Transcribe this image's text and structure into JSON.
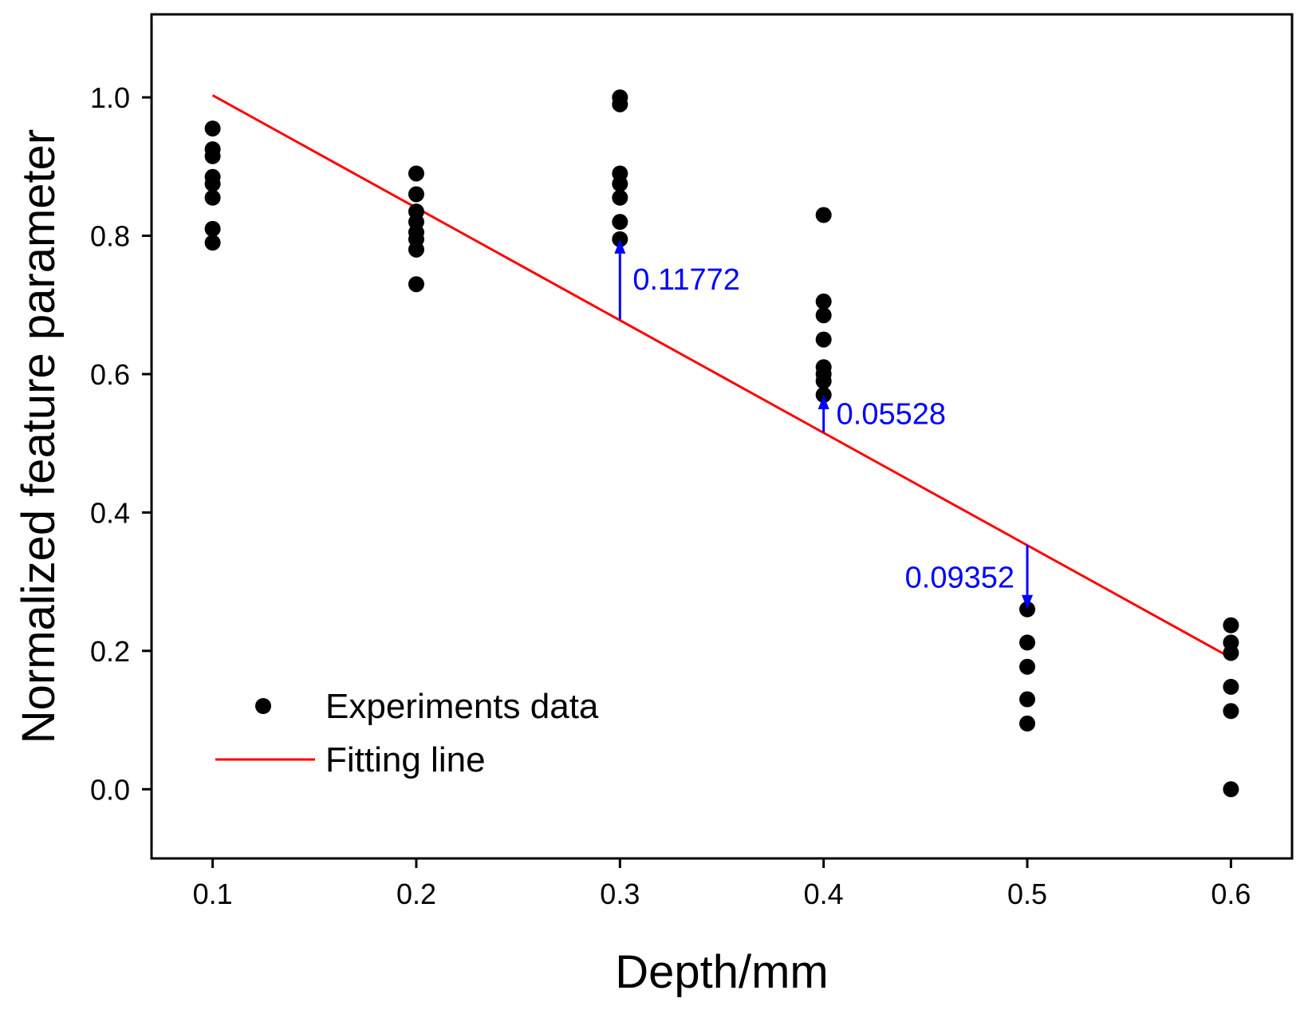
{
  "chart_data": {
    "type": "scatter",
    "title": "",
    "xlabel": "Depth/mm",
    "ylabel": "Normalized feature parameter",
    "xlim": [
      0.07,
      0.63
    ],
    "ylim": [
      -0.1,
      1.12
    ],
    "x_ticks": [
      0.1,
      0.2,
      0.3,
      0.4,
      0.5,
      0.6
    ],
    "x_tick_labels": [
      "0.1",
      "0.2",
      "0.3",
      "0.4",
      "0.5",
      "0.6"
    ],
    "y_ticks": [
      0.0,
      0.2,
      0.4,
      0.6,
      0.8,
      1.0
    ],
    "y_tick_labels": [
      "0.0",
      "0.2",
      "0.4",
      "0.6",
      "0.8",
      "1.0"
    ],
    "grid": false,
    "legend_position": "bottom-left",
    "colors": {
      "points": "#000000",
      "fit_line": "#ff0000",
      "annotation": "#0000ff"
    },
    "series": [
      {
        "name": "Experiments data",
        "type": "scatter",
        "points": [
          {
            "x": 0.1,
            "y": 0.955
          },
          {
            "x": 0.1,
            "y": 0.925
          },
          {
            "x": 0.1,
            "y": 0.915
          },
          {
            "x": 0.1,
            "y": 0.885
          },
          {
            "x": 0.1,
            "y": 0.875
          },
          {
            "x": 0.1,
            "y": 0.855
          },
          {
            "x": 0.1,
            "y": 0.81
          },
          {
            "x": 0.1,
            "y": 0.79
          },
          {
            "x": 0.2,
            "y": 0.89
          },
          {
            "x": 0.2,
            "y": 0.86
          },
          {
            "x": 0.2,
            "y": 0.835
          },
          {
            "x": 0.2,
            "y": 0.82
          },
          {
            "x": 0.2,
            "y": 0.805
          },
          {
            "x": 0.2,
            "y": 0.795
          },
          {
            "x": 0.2,
            "y": 0.78
          },
          {
            "x": 0.2,
            "y": 0.73
          },
          {
            "x": 0.3,
            "y": 1.0
          },
          {
            "x": 0.3,
            "y": 0.99
          },
          {
            "x": 0.3,
            "y": 0.89
          },
          {
            "x": 0.3,
            "y": 0.875
          },
          {
            "x": 0.3,
            "y": 0.855
          },
          {
            "x": 0.3,
            "y": 0.82
          },
          {
            "x": 0.3,
            "y": 0.795
          },
          {
            "x": 0.4,
            "y": 0.83
          },
          {
            "x": 0.4,
            "y": 0.705
          },
          {
            "x": 0.4,
            "y": 0.685
          },
          {
            "x": 0.4,
            "y": 0.65
          },
          {
            "x": 0.4,
            "y": 0.61
          },
          {
            "x": 0.4,
            "y": 0.6
          },
          {
            "x": 0.4,
            "y": 0.59
          },
          {
            "x": 0.4,
            "y": 0.57
          },
          {
            "x": 0.5,
            "y": 0.26
          },
          {
            "x": 0.5,
            "y": 0.212
          },
          {
            "x": 0.5,
            "y": 0.177
          },
          {
            "x": 0.5,
            "y": 0.13
          },
          {
            "x": 0.5,
            "y": 0.095
          },
          {
            "x": 0.6,
            "y": 0.237
          },
          {
            "x": 0.6,
            "y": 0.212
          },
          {
            "x": 0.6,
            "y": 0.197
          },
          {
            "x": 0.6,
            "y": 0.148
          },
          {
            "x": 0.6,
            "y": 0.113
          },
          {
            "x": 0.6,
            "y": 0.0
          }
        ]
      },
      {
        "name": "Fitting line",
        "type": "line",
        "x": [
          0.1,
          0.6
        ],
        "y": [
          1.003,
          0.19
        ]
      }
    ],
    "annotations": [
      {
        "text": "0.11772",
        "x": 0.3,
        "y_from": 0.679,
        "y_to": 0.795,
        "direction": "up",
        "label_side": "right"
      },
      {
        "text": "0.05528",
        "x": 0.4,
        "y_from": 0.516,
        "y_to": 0.57,
        "direction": "up",
        "label_side": "right"
      },
      {
        "text": "0.09352",
        "x": 0.5,
        "y_from": 0.353,
        "y_to": 0.26,
        "direction": "down",
        "label_side": "left"
      }
    ]
  }
}
